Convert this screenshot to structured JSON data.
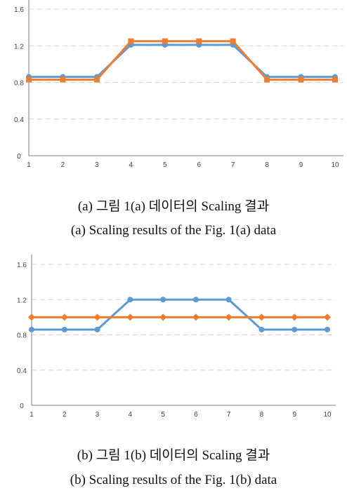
{
  "chart_data": [
    {
      "type": "line",
      "caption_kr": "(a)  그림  1(a)  데이터의  Scaling  결과",
      "caption_en": "(a)  Scaling  results  of  the  Fig.  1(a)  data",
      "categories": [
        "1",
        "2",
        "3",
        "4",
        "5",
        "6",
        "7",
        "8",
        "9",
        "10"
      ],
      "y_ticks": [
        "0",
        "0.4",
        "0.8",
        "1.2",
        "1.6"
      ],
      "ylim": [
        0,
        1.6
      ],
      "grid": true,
      "series": [
        {
          "color": "#5b9bd5",
          "marker": "circle",
          "values": [
            0.86,
            0.86,
            0.86,
            1.21,
            1.21,
            1.21,
            1.21,
            0.86,
            0.86,
            0.86
          ]
        },
        {
          "color": "#ed7d31",
          "marker": "square",
          "values": [
            0.83,
            0.83,
            0.83,
            1.25,
            1.25,
            1.25,
            1.25,
            0.83,
            0.83,
            0.83
          ]
        }
      ]
    },
    {
      "type": "line",
      "caption_kr": "(b)  그림  1(b)  데이터의  Scaling  결과",
      "caption_en": "(b)  Scaling  results  of  the  Fig.  1(b)  data",
      "categories": [
        "1",
        "2",
        "3",
        "4",
        "5",
        "6",
        "7",
        "8",
        "9",
        "10"
      ],
      "y_ticks": [
        "0",
        "0.4",
        "0.8",
        "1.2",
        "1.6"
      ],
      "ylim": [
        0,
        1.6
      ],
      "grid": true,
      "series": [
        {
          "color": "#5b9bd5",
          "marker": "circle",
          "values": [
            0.86,
            0.86,
            0.86,
            1.2,
            1.2,
            1.2,
            1.2,
            0.86,
            0.86,
            0.86
          ]
        },
        {
          "color": "#ed7d31",
          "marker": "diamond",
          "values": [
            1.0,
            1.0,
            1.0,
            1.0,
            1.0,
            1.0,
            1.0,
            1.0,
            1.0,
            1.0
          ]
        }
      ]
    }
  ]
}
